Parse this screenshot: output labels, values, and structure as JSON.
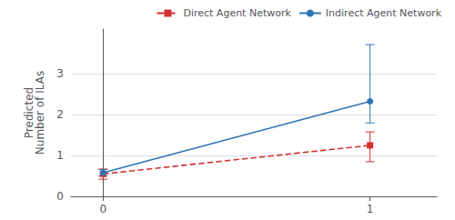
{
  "chart_data": {
    "type": "line",
    "ylabel": "Predicted\nNumber of ILAs",
    "x": [
      0,
      1
    ],
    "series": [
      {
        "name": "Direct Agent Network",
        "color": "#d0312d",
        "values": [
          0.55,
          1.25
        ],
        "ci_low": [
          0.42,
          0.85
        ],
        "ci_high": [
          0.67,
          1.58
        ],
        "marker": "square",
        "line_style": "dashed"
      },
      {
        "name": "Indirect Agent Network",
        "color": "#2e75b6",
        "values": [
          0.58,
          2.33
        ],
        "ci_low": [
          0.5,
          1.8
        ],
        "ci_high": [
          0.66,
          3.72
        ],
        "marker": "circle",
        "line_style": "solid"
      }
    ],
    "xlim": [
      -0.12,
      1.25
    ],
    "xticks": [
      0,
      1
    ],
    "ylim": [
      0.0,
      4.1
    ],
    "yticks": [
      0,
      1,
      2,
      3
    ],
    "grid": true,
    "legend": "upper right"
  }
}
